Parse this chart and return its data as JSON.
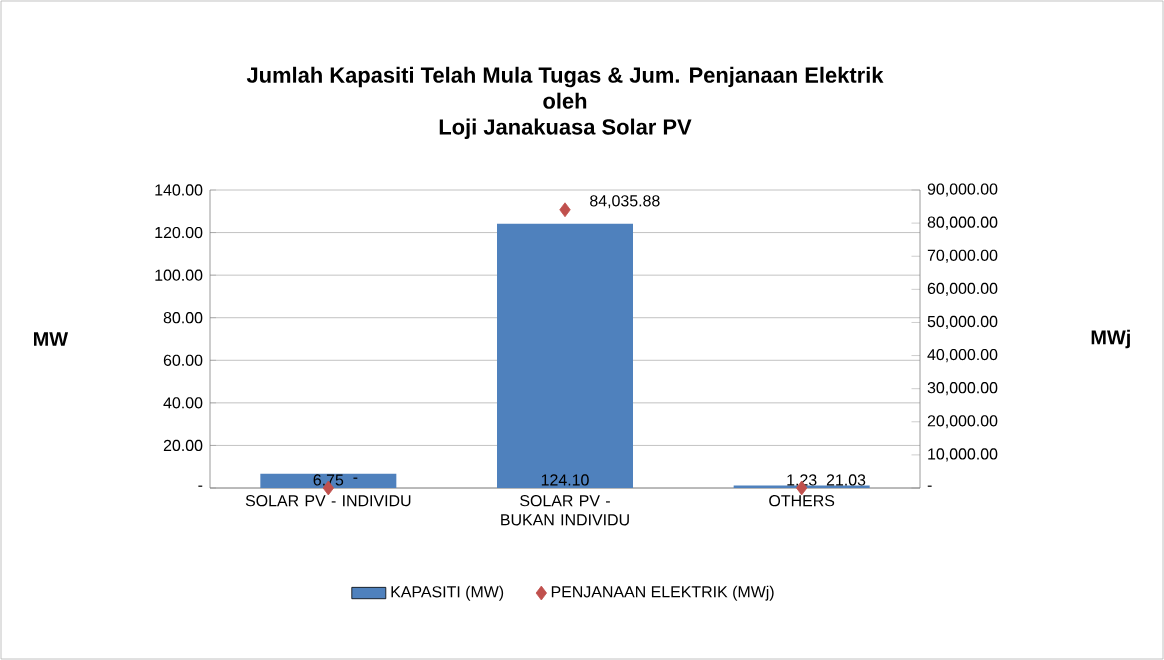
{
  "chart_data": {
    "type": "bar",
    "title": "Jumlah Kapasiti Telah Mula Tugas & Jum. Penjanaan Elektrik\noleh\nLoji Janakuasa Solar PV",
    "ylabel": "MW",
    "y2label": "MWj",
    "categories": [
      "SOLAR PV - INDIVIDU",
      "SOLAR PV - BUKAN INDIVIDU",
      "OTHERS"
    ],
    "series": [
      {
        "name": "KAPASITI (MW)",
        "color": "#4f81bd",
        "values": [
          6.75,
          124.1,
          1.23
        ],
        "value_labels": [
          "6.75",
          "124.10",
          "1.23"
        ]
      },
      {
        "name": "PENJANAAN ELEKTRIK (MWj)",
        "type": "scatter",
        "axis": "y2",
        "marker": "diamond",
        "color": "#c0504d",
        "values": [
          0,
          84035.88,
          21.03
        ],
        "value_labels": [
          "-",
          "84,035.88",
          "21.03"
        ]
      }
    ],
    "ylim": [
      0,
      140
    ],
    "yticks": [
      {
        "value": 0,
        "label": "-"
      },
      {
        "value": 20,
        "label": "20.00"
      },
      {
        "value": 40,
        "label": "40.00"
      },
      {
        "value": 60,
        "label": "60.00"
      },
      {
        "value": 80,
        "label": "80.00"
      },
      {
        "value": 100,
        "label": "100.00"
      },
      {
        "value": 120,
        "label": "120.00"
      },
      {
        "value": 140,
        "label": "140.00"
      }
    ],
    "y2lim": [
      0,
      90000
    ],
    "y2ticks": [
      {
        "value": 0,
        "label": "-"
      },
      {
        "value": 10000,
        "label": "10,000.00"
      },
      {
        "value": 20000,
        "label": "20,000.00"
      },
      {
        "value": 30000,
        "label": "30,000.00"
      },
      {
        "value": 40000,
        "label": "40,000.00"
      },
      {
        "value": 50000,
        "label": "50,000.00"
      },
      {
        "value": 60000,
        "label": "60,000.00"
      },
      {
        "value": 70000,
        "label": "70,000.00"
      },
      {
        "value": 80000,
        "label": "80,000.00"
      },
      {
        "value": 90000,
        "label": "90,000.00"
      }
    ],
    "grid": "y",
    "legend": "bottom"
  }
}
